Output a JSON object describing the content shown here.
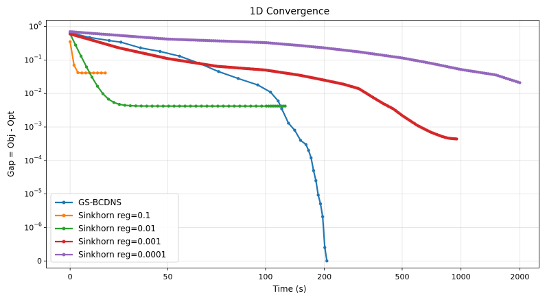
{
  "chart_data": {
    "type": "line",
    "title": "1D Convergence",
    "xlabel": "Time (s)",
    "ylabel": "Gap = Obj - Opt",
    "x_scale": "symlog",
    "y_scale": "symlog",
    "xlim": [
      -12,
      2500
    ],
    "ylim": [
      -2e-07,
      1.5
    ],
    "x_ticks": [
      {
        "value": 0,
        "label": "0"
      },
      {
        "value": 50,
        "label": "50"
      },
      {
        "value": 100,
        "label": "100"
      },
      {
        "value": 200,
        "label": "200"
      },
      {
        "value": 500,
        "label": "500"
      },
      {
        "value": 1000,
        "label": "1000"
      },
      {
        "value": 2000,
        "label": "2000"
      }
    ],
    "y_ticks": [
      {
        "value": 0,
        "base": "0",
        "exp": ""
      },
      {
        "value": 1e-06,
        "base": "10",
        "exp": "−6"
      },
      {
        "value": 1e-05,
        "base": "10",
        "exp": "−5"
      },
      {
        "value": 0.0001,
        "base": "10",
        "exp": "−4"
      },
      {
        "value": 0.001,
        "base": "10",
        "exp": "−3"
      },
      {
        "value": 0.01,
        "base": "10",
        "exp": "−2"
      },
      {
        "value": 0.1,
        "base": "10",
        "exp": "−1"
      },
      {
        "value": 1,
        "base": "10",
        "exp": "0"
      }
    ],
    "grid": true,
    "legend_position": "bottom-left",
    "series": [
      {
        "name": "GS-BCDNS",
        "color": "#1f77b4",
        "x": [
          0,
          10,
          20,
          26,
          36,
          46,
          56,
          66,
          76,
          86,
          96,
          106,
          116,
          121,
          131,
          141,
          151,
          161,
          166,
          171,
          176,
          181,
          186,
          191,
          196,
          201,
          206
        ],
        "y": [
          0.65,
          0.47,
          0.38,
          0.34,
          0.23,
          0.18,
          0.13,
          0.08,
          0.045,
          0.028,
          0.018,
          0.011,
          0.006,
          0.0035,
          0.0013,
          0.0008,
          0.0004,
          0.0003,
          0.0002,
          0.00012,
          5e-05,
          2.5e-05,
          9.3e-06,
          5.1e-06,
          2.1e-06,
          4e-07,
          0
        ]
      },
      {
        "name": "Sinkhorn reg=0.1",
        "color": "#ff7f0e",
        "x": [
          0,
          2,
          4,
          6,
          8,
          10,
          12,
          14,
          16,
          18
        ],
        "y": [
          0.35,
          0.07,
          0.042,
          0.041,
          0.041,
          0.041,
          0.041,
          0.041,
          0.041,
          0.041
        ]
      },
      {
        "name": "Sinkhorn reg=0.01",
        "color": "#2ca02c",
        "generator": {
          "x_start": 0,
          "x_end": 126,
          "n": 46,
          "y_start": 0.6,
          "y_floor": 0.0042,
          "tau": 3.6
        }
      },
      {
        "name": "Sinkhorn reg=0.001",
        "color": "#d62728",
        "x": [
          0,
          25,
          50,
          75,
          100,
          150,
          200,
          250,
          300,
          350,
          400,
          450,
          500,
          600,
          700,
          800,
          850,
          900,
          950
        ],
        "y": [
          0.6,
          0.23,
          0.11,
          0.065,
          0.05,
          0.035,
          0.025,
          0.019,
          0.014,
          0.008,
          0.005,
          0.0035,
          0.0022,
          0.0011,
          0.0007,
          0.00052,
          0.00047,
          0.00045,
          0.00044
        ],
        "n_points": 260
      },
      {
        "name": "Sinkhorn reg=0.0001",
        "color": "#9467bd",
        "x": [
          0,
          50,
          100,
          150,
          200,
          300,
          500,
          700,
          1000,
          1500,
          2000
        ],
        "y": [
          0.7,
          0.42,
          0.33,
          0.27,
          0.23,
          0.175,
          0.115,
          0.08,
          0.052,
          0.036,
          0.021
        ],
        "n_points": 230
      }
    ]
  }
}
